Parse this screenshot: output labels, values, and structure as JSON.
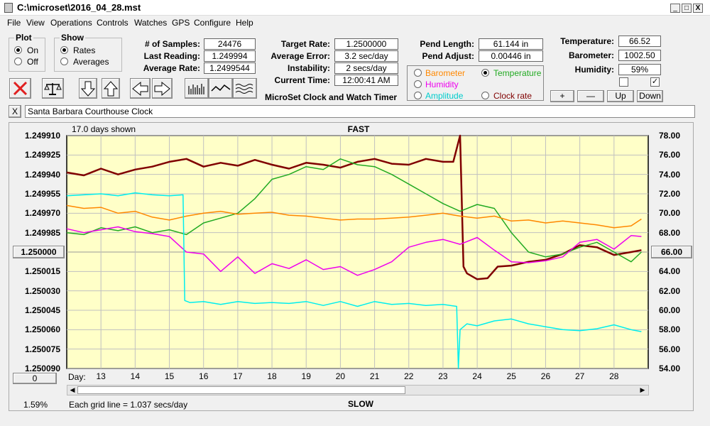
{
  "window": {
    "title": "C:\\microset\\2016_04_28.mst",
    "minimize": "_",
    "restore": "□",
    "close": "X"
  },
  "menu": [
    "File",
    "View",
    "Operations",
    "Controls",
    "Watches",
    "GPS",
    "Configure",
    "Help"
  ],
  "plot_group": {
    "title": "Plot",
    "on": "On",
    "off": "Off",
    "selected": "On"
  },
  "show_group": {
    "title": "Show",
    "rates": "Rates",
    "averages": "Averages",
    "selected": "Rates"
  },
  "stats": {
    "samples_label": "# of Samples:",
    "samples": "24476",
    "last_reading_label": "Last Reading:",
    "last_reading": "1.249994",
    "average_rate_label": "Average Rate:",
    "average_rate": "1.2499544",
    "target_rate_label": "Target Rate:",
    "target_rate": "1.2500000",
    "average_error_label": "Average Error:",
    "average_error": "3.2 sec/day",
    "instability_label": "Instability:",
    "instability": "2 secs/day",
    "current_time_label": "Current Time:",
    "current_time": "12:00:41 AM",
    "app_name": "MicroSet Clock and Watch Timer",
    "pend_length_label": "Pend Length:",
    "pend_length": "61.144 in",
    "pend_adjust_label": "Pend Adjust:",
    "pend_adjust": "0.00446 in",
    "temperature_label": "Temperature:",
    "temperature": "66.52",
    "barometer_label": "Barometer:",
    "barometer": "1002.50",
    "humidity_label": "Humidity:",
    "humidity": "59%"
  },
  "series_select": {
    "barometer": "Barometer",
    "temperature": "Temperature",
    "humidity": "Humidity",
    "amplitude": "Amplitude",
    "clock_rate": "Clock rate",
    "selected": "Temperature"
  },
  "right_buttons": {
    "plus": "+",
    "minus": "—",
    "up": "Up",
    "down": "Down"
  },
  "checkboxes": {
    "left_checked": false,
    "right_checked": true,
    "right_mark": "✓"
  },
  "watch_name": {
    "close": "X",
    "value": "Santa Barbara Courthouse Clock"
  },
  "colors": {
    "plot_bg": "#ffffc8",
    "rate": "#800000",
    "temperature": "#22aa22",
    "barometer": "#ff8800",
    "humidity": "#ee00ee",
    "amplitude": "#00eeee",
    "gridline": "#c0c0c0",
    "midline": "#999999"
  },
  "chart_data": {
    "type": "line",
    "title": "FAST",
    "bottom_label": "SLOW",
    "days_shown": "17.0 days shown",
    "day_label": "Day:",
    "x_ticks": [
      "13",
      "14",
      "15",
      "16",
      "17",
      "18",
      "19",
      "20",
      "21",
      "22",
      "23",
      "24",
      "25",
      "26",
      "27",
      "28"
    ],
    "xlim": [
      12.0,
      29.0
    ],
    "y_left_ticks": [
      "1.249910",
      "1.249925",
      "1.249940",
      "1.249955",
      "1.249970",
      "1.249985",
      "1.250000",
      "1.250015",
      "1.250030",
      "1.250045",
      "1.250060",
      "1.250075",
      "1.250090"
    ],
    "y_left_center": "1.250000",
    "y_right_ticks": [
      "78.00",
      "76.00",
      "74.00",
      "72.00",
      "70.00",
      "68.00",
      "66.00",
      "64.00",
      "62.00",
      "60.00",
      "58.00",
      "56.00",
      "54.00"
    ],
    "y_right_center": "66.00",
    "ylim_right": [
      54,
      78
    ],
    "x_zero_button": "0",
    "percent": "1.59%",
    "grid_note": "Each grid line = 1.037 secs/day",
    "series": [
      {
        "name": "Clock rate",
        "color": "#800000",
        "width": 2.5,
        "x": [
          12.0,
          12.5,
          13.0,
          13.5,
          14.0,
          14.5,
          15.0,
          15.5,
          16.0,
          16.5,
          17.0,
          17.5,
          18.0,
          18.5,
          19.0,
          19.5,
          20.0,
          20.5,
          21.0,
          21.5,
          22.0,
          22.5,
          23.0,
          23.3,
          23.5,
          23.6,
          23.7,
          24.0,
          24.3,
          24.6,
          25.0,
          25.5,
          26.0,
          26.5,
          27.0,
          27.5,
          28.0,
          28.5,
          28.8
        ],
        "y": [
          74.2,
          73.9,
          74.6,
          74.0,
          74.5,
          74.8,
          75.3,
          75.6,
          74.8,
          75.2,
          74.9,
          75.5,
          75.0,
          74.6,
          75.2,
          75.0,
          74.7,
          75.3,
          75.6,
          75.1,
          75.0,
          75.6,
          75.3,
          75.3,
          78.0,
          64.5,
          63.8,
          63.2,
          63.3,
          64.5,
          64.6,
          65.0,
          65.2,
          65.8,
          66.7,
          66.5,
          65.7,
          66.0,
          66.2
        ]
      },
      {
        "name": "Temperature",
        "color": "#22aa22",
        "width": 1.5,
        "x": [
          12.0,
          12.5,
          13.0,
          13.5,
          14.0,
          14.5,
          15.0,
          15.5,
          16.0,
          16.5,
          17.0,
          17.5,
          18.0,
          18.5,
          19.0,
          19.5,
          20.0,
          20.5,
          21.0,
          21.5,
          22.0,
          22.5,
          23.0,
          23.5,
          24.0,
          24.5,
          25.0,
          25.5,
          26.0,
          26.5,
          27.0,
          27.5,
          28.0,
          28.5,
          28.8
        ],
        "y": [
          68.0,
          67.8,
          68.5,
          68.2,
          68.6,
          68.0,
          68.3,
          67.8,
          69.0,
          69.5,
          70.0,
          71.5,
          73.5,
          74.0,
          74.8,
          74.5,
          75.6,
          75.0,
          74.8,
          74.0,
          73.0,
          72.0,
          71.0,
          70.2,
          70.9,
          70.5,
          68.0,
          66.0,
          65.5,
          65.8,
          66.5,
          67.0,
          66.0,
          65.0,
          66.0
        ]
      },
      {
        "name": "Barometer",
        "color": "#ff8800",
        "width": 1.5,
        "x": [
          12.0,
          12.5,
          13.0,
          13.5,
          14.0,
          14.5,
          15.0,
          15.5,
          16.0,
          16.5,
          17.0,
          17.5,
          18.0,
          18.5,
          19.0,
          19.5,
          20.0,
          20.5,
          21.0,
          21.5,
          22.0,
          22.5,
          23.0,
          23.5,
          24.0,
          24.5,
          25.0,
          25.5,
          26.0,
          26.5,
          27.0,
          27.5,
          28.0,
          28.5,
          28.8
        ],
        "y": [
          70.8,
          70.5,
          70.6,
          70.0,
          70.2,
          69.6,
          69.3,
          69.7,
          70.0,
          70.2,
          69.9,
          70.0,
          70.1,
          69.8,
          69.7,
          69.5,
          69.3,
          69.4,
          69.4,
          69.5,
          69.6,
          69.8,
          70.0,
          69.7,
          69.5,
          69.7,
          69.2,
          69.3,
          69.0,
          69.2,
          69.0,
          68.8,
          68.5,
          68.7,
          69.4
        ]
      },
      {
        "name": "Humidity",
        "color": "#ee00ee",
        "width": 1.5,
        "x": [
          12.0,
          12.5,
          13.0,
          13.5,
          14.0,
          14.5,
          15.0,
          15.5,
          16.0,
          16.5,
          17.0,
          17.5,
          18.0,
          18.5,
          19.0,
          19.5,
          20.0,
          20.5,
          21.0,
          21.5,
          22.0,
          22.5,
          23.0,
          23.5,
          24.0,
          24.5,
          25.0,
          25.5,
          26.0,
          26.5,
          27.0,
          27.5,
          28.0,
          28.5,
          28.8
        ],
        "y": [
          68.4,
          68.0,
          68.3,
          68.6,
          68.1,
          67.9,
          67.6,
          66.0,
          65.8,
          64.0,
          65.5,
          63.8,
          64.8,
          64.3,
          65.2,
          64.2,
          64.5,
          63.6,
          64.2,
          65.0,
          66.5,
          67.0,
          67.3,
          66.8,
          67.5,
          66.2,
          65.0,
          64.9,
          65.1,
          65.5,
          67.0,
          67.3,
          66.3,
          67.7,
          67.6
        ]
      },
      {
        "name": "Amplitude",
        "color": "#00eeee",
        "width": 1.5,
        "x": [
          12.0,
          12.5,
          13.0,
          13.5,
          14.0,
          14.5,
          15.0,
          15.4,
          15.45,
          15.6,
          16.0,
          16.5,
          17.0,
          17.5,
          18.0,
          18.5,
          19.0,
          19.5,
          20.0,
          20.5,
          21.0,
          21.5,
          22.0,
          22.5,
          23.0,
          23.4,
          23.45,
          23.5,
          23.7,
          24.0,
          24.5,
          25.0,
          25.5,
          26.0,
          26.5,
          27.0,
          27.5,
          28.0,
          28.5,
          28.8
        ],
        "y": [
          71.8,
          71.9,
          72.0,
          71.8,
          72.1,
          71.9,
          71.8,
          71.9,
          61.0,
          60.8,
          60.9,
          60.6,
          60.9,
          60.7,
          60.8,
          60.7,
          60.9,
          60.5,
          60.9,
          60.4,
          60.9,
          60.6,
          60.7,
          60.5,
          60.6,
          60.4,
          54.0,
          58.0,
          58.6,
          58.4,
          58.9,
          59.1,
          58.6,
          58.3,
          58.0,
          57.9,
          58.1,
          58.5,
          58.0,
          57.8
        ]
      }
    ]
  }
}
